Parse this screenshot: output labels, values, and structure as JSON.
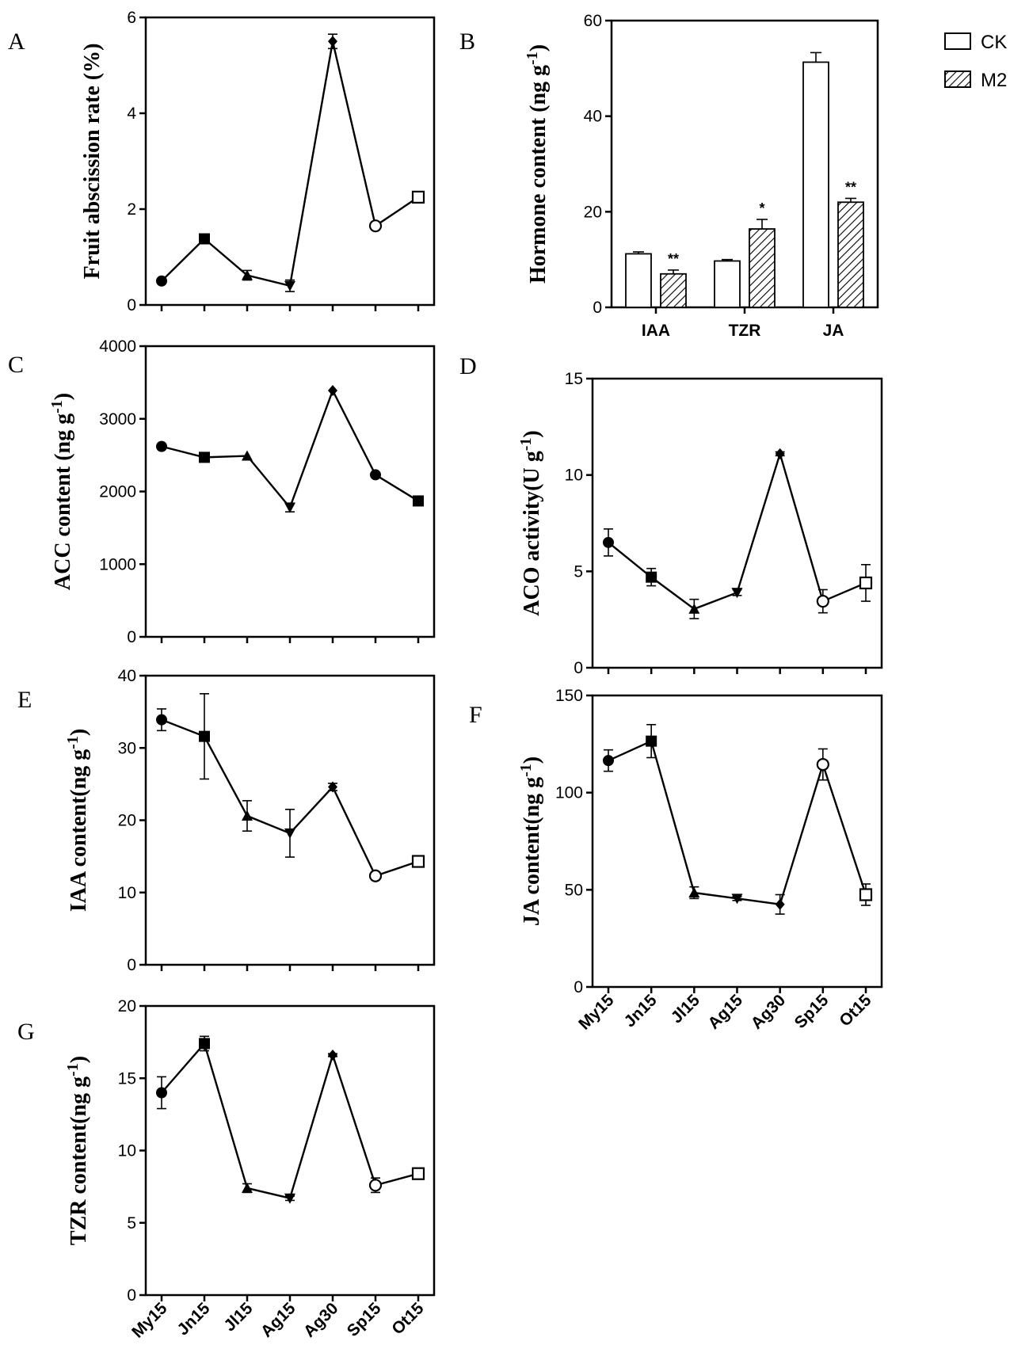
{
  "figure": {
    "legend": [
      {
        "name": "CK",
        "pattern": "white"
      },
      {
        "name": "M2",
        "pattern": "hatch"
      }
    ]
  },
  "chart_data": [
    {
      "id": "A",
      "panel": "A",
      "type": "line",
      "ylabel": "Fruit abscission rate (%)",
      "ylim": [
        0,
        6
      ],
      "yticks": [
        0,
        2,
        4,
        6
      ],
      "categories": [
        "My15",
        "Jn15",
        "Jl15",
        "Ag15",
        "Ag30",
        "Sp15",
        "Ot15"
      ],
      "show_xlabels": false,
      "values": [
        0.5,
        1.38,
        0.62,
        0.4,
        5.5,
        1.65,
        2.25
      ],
      "errors": [
        0.0,
        0.0,
        0.1,
        0.12,
        0.15,
        0.0,
        0.0
      ],
      "markers": [
        "circle",
        "square",
        "triangle-up",
        "triangle-down",
        "diamond",
        "circle-open",
        "square-open"
      ]
    },
    {
      "id": "B",
      "panel": "B",
      "type": "bar",
      "ylabel": "Hormone content (ng g-1)",
      "ylim": [
        0,
        60
      ],
      "yticks": [
        0,
        20,
        40,
        60
      ],
      "categories": [
        "IAA",
        "TZR",
        "JA"
      ],
      "series": [
        {
          "name": "CK",
          "values": [
            11.2,
            9.7,
            51.3
          ],
          "errors": [
            0.4,
            0.3,
            2.0
          ]
        },
        {
          "name": "M2",
          "values": [
            7.0,
            16.4,
            22.0
          ],
          "errors": [
            0.8,
            2.0,
            0.8
          ]
        }
      ],
      "significance": [
        "**",
        "*",
        "**"
      ]
    },
    {
      "id": "C",
      "panel": "C",
      "type": "line",
      "ylabel": "ACC content (ng g-1)",
      "ylim": [
        0,
        4000
      ],
      "yticks": [
        0,
        1000,
        2000,
        3000,
        4000
      ],
      "categories": [
        "My15",
        "Jn15",
        "Jl15",
        "Ag15",
        "Ag30",
        "Sp15",
        "Ot15"
      ],
      "show_xlabels": false,
      "values": [
        2620,
        2470,
        2490,
        1780,
        3390,
        2230,
        1870
      ],
      "errors": [
        0,
        0,
        0,
        60,
        0,
        0,
        0
      ],
      "markers": [
        "circle",
        "square",
        "triangle-up",
        "triangle-down",
        "diamond",
        "circle",
        "square"
      ]
    },
    {
      "id": "D",
      "panel": "D",
      "type": "line",
      "ylabel": "ACO activity(U g-1)",
      "ylim": [
        0,
        15
      ],
      "yticks": [
        0,
        5,
        10,
        15
      ],
      "categories": [
        "My15",
        "Jn15",
        "Jl15",
        "Ag15",
        "Ag30",
        "Sp15",
        "Ot15"
      ],
      "show_xlabels": false,
      "values": [
        6.5,
        4.7,
        3.05,
        3.9,
        11.1,
        3.45,
        4.4
      ],
      "errors": [
        0.7,
        0.45,
        0.5,
        0.15,
        0.1,
        0.6,
        0.95
      ],
      "markers": [
        "circle",
        "square",
        "triangle-up",
        "triangle-down",
        "diamond",
        "circle-open",
        "square-open"
      ]
    },
    {
      "id": "E",
      "panel": "E",
      "type": "line",
      "ylabel": "IAA content(ng g-1)",
      "ylim": [
        0,
        40
      ],
      "yticks": [
        0,
        10,
        20,
        30,
        40
      ],
      "categories": [
        "My15",
        "Jn15",
        "Jl15",
        "Ag15",
        "Ag30",
        "Sp15",
        "Ot15"
      ],
      "show_xlabels": false,
      "values": [
        33.9,
        31.6,
        20.6,
        18.2,
        24.6,
        12.3,
        14.3
      ],
      "errors": [
        1.5,
        5.9,
        2.1,
        3.3,
        0.5,
        0.3,
        0.4
      ],
      "markers": [
        "circle",
        "square",
        "triangle-up",
        "triangle-down",
        "diamond",
        "circle-open",
        "square-open"
      ]
    },
    {
      "id": "F",
      "panel": "F",
      "type": "line",
      "ylabel": "JA content(ng g-1)",
      "ylim": [
        0,
        150
      ],
      "yticks": [
        0,
        50,
        100,
        150
      ],
      "categories": [
        "My15",
        "Jn15",
        "Jl15",
        "Ag15",
        "Ag30",
        "Sp15",
        "Ot15"
      ],
      "show_xlabels": true,
      "values": [
        116.5,
        126.5,
        48.5,
        45.5,
        42.5,
        114.5,
        47.5
      ],
      "errors": [
        5.5,
        8.5,
        3.0,
        1.0,
        5.0,
        8.0,
        5.5
      ],
      "markers": [
        "circle",
        "square",
        "triangle-up",
        "triangle-down",
        "diamond",
        "circle-open",
        "square-open"
      ]
    },
    {
      "id": "G",
      "panel": "G",
      "type": "line",
      "ylabel": "TZR content(ng g-1)",
      "ylim": [
        0,
        20
      ],
      "yticks": [
        0,
        5,
        10,
        15,
        20
      ],
      "categories": [
        "My15",
        "Jn15",
        "Jl15",
        "Ag15",
        "Ag30",
        "Sp15",
        "Ot15"
      ],
      "show_xlabels": true,
      "values": [
        14.0,
        17.4,
        7.4,
        6.7,
        16.6,
        7.6,
        8.4
      ],
      "errors": [
        1.1,
        0.5,
        0.3,
        0.15,
        0.1,
        0.5,
        0.2
      ],
      "markers": [
        "circle",
        "square",
        "triangle-up",
        "triangle-down",
        "diamond",
        "circle-open",
        "square-open"
      ]
    }
  ]
}
